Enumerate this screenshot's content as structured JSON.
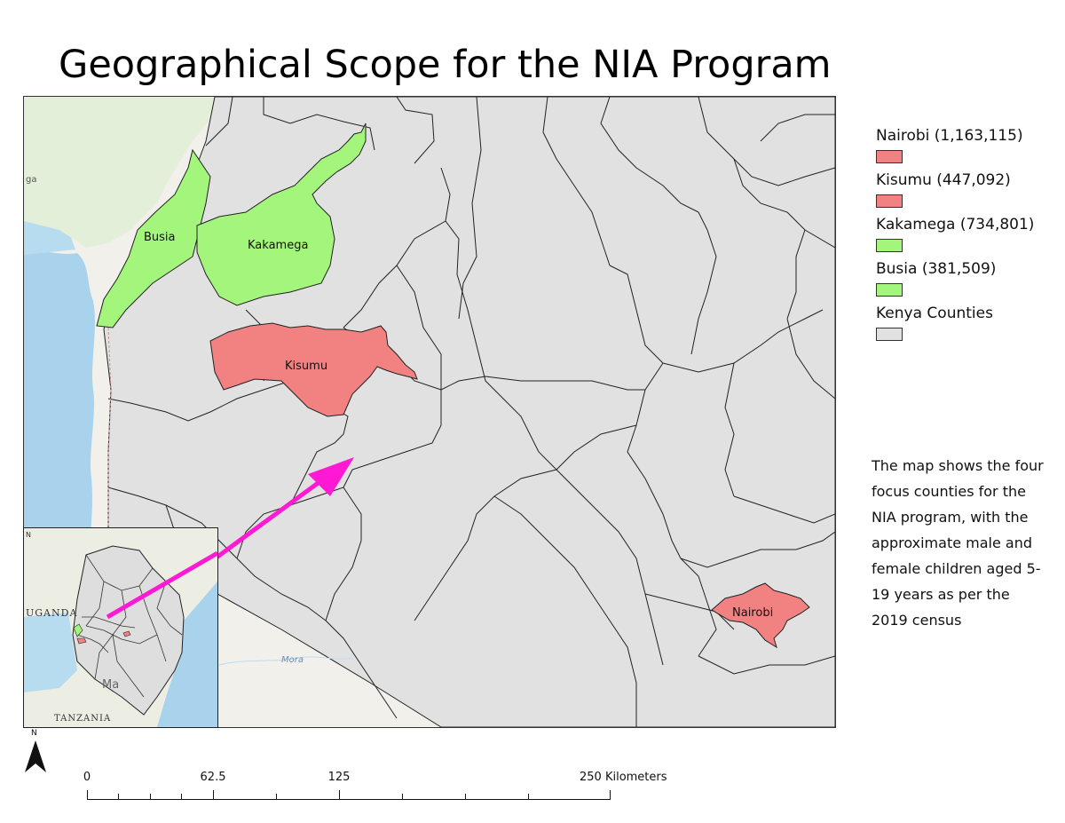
{
  "title": "Geographical Scope for the NIA Program",
  "legend": [
    {
      "label": "Nairobi (1,163,115)",
      "color": "#f28282"
    },
    {
      "label": "Kisumu (447,092)",
      "color": "#f28282"
    },
    {
      "label": "Kakamega (734,801)",
      "color": "#a4f57c"
    },
    {
      "label": "Busia (381,509)",
      "color": "#a4f57c"
    },
    {
      "label": "Kenya Counties",
      "color": "#e1e1e1"
    }
  ],
  "county_labels": {
    "busia": "Busia",
    "kakamega": "Kakamega",
    "kisumu": "Kisumu",
    "nairobi": "Nairobi"
  },
  "basemap_labels": {
    "mora": "Mora",
    "ga": "ga"
  },
  "inset": {
    "uganda": "UGANDA",
    "tanzania": "TANZANIA",
    "ma": "Ma",
    "n": "N"
  },
  "note": "The map shows the four focus counties for the NIA program, with the approximate male and female children aged 5-19 years as per the 2019 census",
  "north_label": "N",
  "scalebar": {
    "labels": [
      "0",
      "62.5",
      "125",
      "250 Kilometers"
    ]
  },
  "colors": {
    "focus_red": "#f28282",
    "focus_green": "#a4f57c",
    "county_gray": "#e1e1e1",
    "water": "#a9d2ec",
    "arrow": "#ff19d4"
  }
}
